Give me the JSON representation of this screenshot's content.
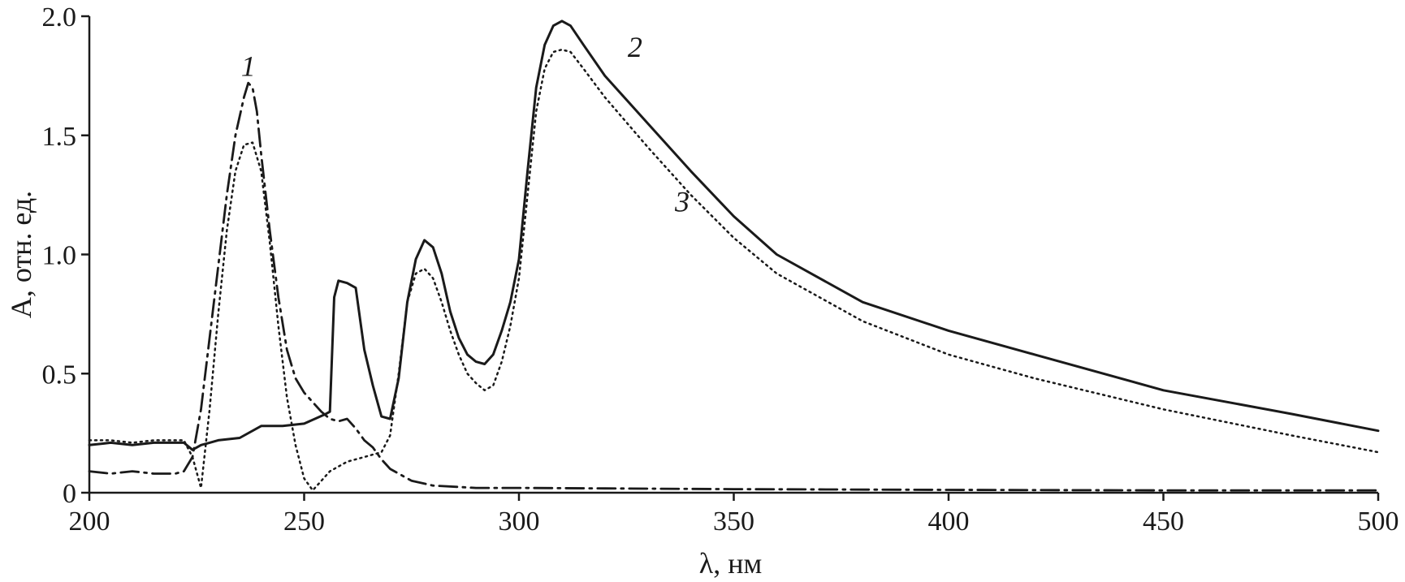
{
  "chart_data": {
    "type": "line",
    "xlabel": "λ, нм",
    "ylabel": "A, отн. ед.",
    "xlim": [
      200,
      500
    ],
    "ylim": [
      0,
      2.0
    ],
    "xticks": [
      200,
      250,
      300,
      350,
      400,
      450,
      500
    ],
    "yticks": [
      0,
      0.5,
      1.0,
      1.5,
      2.0
    ],
    "xtick_labels": [
      "200",
      "250",
      "300",
      "350",
      "400",
      "450",
      "500"
    ],
    "ytick_labels": [
      "0",
      "0.5",
      "1.0",
      "1.5",
      "2.0"
    ],
    "grid": false,
    "legend": "none",
    "series": [
      {
        "name": "1",
        "style": "dash-dot",
        "color": "#1a1a1a",
        "label_at": [
          237,
          1.75
        ],
        "x": [
          200,
          205,
          210,
          215,
          220,
          222,
          224,
          226,
          228,
          230,
          232,
          234,
          236,
          237,
          238,
          239,
          240,
          242,
          244,
          246,
          248,
          250,
          252,
          254,
          256,
          258,
          260,
          262,
          264,
          266,
          268,
          270,
          272,
          275,
          280,
          290,
          300,
          320,
          350,
          400,
          450,
          500
        ],
        "y": [
          0.09,
          0.08,
          0.09,
          0.08,
          0.08,
          0.09,
          0.15,
          0.35,
          0.65,
          0.95,
          1.25,
          1.5,
          1.66,
          1.72,
          1.7,
          1.6,
          1.42,
          1.1,
          0.82,
          0.6,
          0.48,
          0.42,
          0.38,
          0.34,
          0.31,
          0.3,
          0.31,
          0.27,
          0.22,
          0.19,
          0.14,
          0.1,
          0.08,
          0.05,
          0.03,
          0.02,
          0.02,
          0.018,
          0.015,
          0.012,
          0.01,
          0.01
        ]
      },
      {
        "name": "2",
        "style": "solid",
        "color": "#1a1a1a",
        "label_at": [
          327,
          1.83
        ],
        "x": [
          200,
          205,
          210,
          215,
          220,
          222,
          224,
          226,
          228,
          230,
          235,
          240,
          245,
          250,
          255,
          256,
          257,
          258,
          260,
          262,
          264,
          266,
          268,
          270,
          272,
          274,
          276,
          278,
          280,
          282,
          284,
          286,
          288,
          290,
          292,
          294,
          296,
          298,
          300,
          302,
          304,
          306,
          308,
          310,
          312,
          315,
          320,
          330,
          340,
          350,
          360,
          380,
          400,
          420,
          450,
          480,
          500
        ],
        "y": [
          0.2,
          0.21,
          0.2,
          0.21,
          0.21,
          0.21,
          0.18,
          0.2,
          0.21,
          0.22,
          0.23,
          0.28,
          0.28,
          0.29,
          0.33,
          0.34,
          0.82,
          0.89,
          0.88,
          0.86,
          0.6,
          0.45,
          0.32,
          0.31,
          0.48,
          0.8,
          0.98,
          1.06,
          1.03,
          0.92,
          0.76,
          0.65,
          0.58,
          0.55,
          0.54,
          0.58,
          0.68,
          0.8,
          0.98,
          1.35,
          1.7,
          1.88,
          1.96,
          1.98,
          1.96,
          1.88,
          1.75,
          1.55,
          1.35,
          1.16,
          1.0,
          0.8,
          0.68,
          0.58,
          0.43,
          0.33,
          0.26
        ]
      },
      {
        "name": "3",
        "style": "dotted",
        "color": "#1a1a1a",
        "label_at": [
          338,
          1.18
        ],
        "x": [
          200,
          205,
          210,
          215,
          220,
          222,
          224,
          226,
          228,
          230,
          232,
          234,
          236,
          238,
          240,
          242,
          244,
          246,
          248,
          250,
          252,
          254,
          256,
          258,
          260,
          262,
          264,
          266,
          268,
          270,
          272,
          274,
          276,
          278,
          280,
          282,
          284,
          286,
          288,
          290,
          292,
          294,
          296,
          298,
          300,
          302,
          304,
          306,
          308,
          310,
          312,
          315,
          320,
          330,
          340,
          350,
          360,
          380,
          400,
          420,
          450,
          480,
          500
        ],
        "y": [
          0.22,
          0.22,
          0.21,
          0.22,
          0.22,
          0.22,
          0.15,
          0.02,
          0.35,
          0.75,
          1.1,
          1.35,
          1.46,
          1.47,
          1.35,
          1.05,
          0.7,
          0.4,
          0.2,
          0.06,
          0.01,
          0.05,
          0.09,
          0.11,
          0.13,
          0.14,
          0.15,
          0.16,
          0.17,
          0.24,
          0.5,
          0.8,
          0.92,
          0.94,
          0.9,
          0.8,
          0.68,
          0.58,
          0.5,
          0.46,
          0.43,
          0.45,
          0.55,
          0.7,
          0.9,
          1.25,
          1.6,
          1.78,
          1.85,
          1.86,
          1.85,
          1.78,
          1.66,
          1.45,
          1.25,
          1.07,
          0.92,
          0.72,
          0.58,
          0.48,
          0.35,
          0.24,
          0.17
        ]
      }
    ]
  }
}
